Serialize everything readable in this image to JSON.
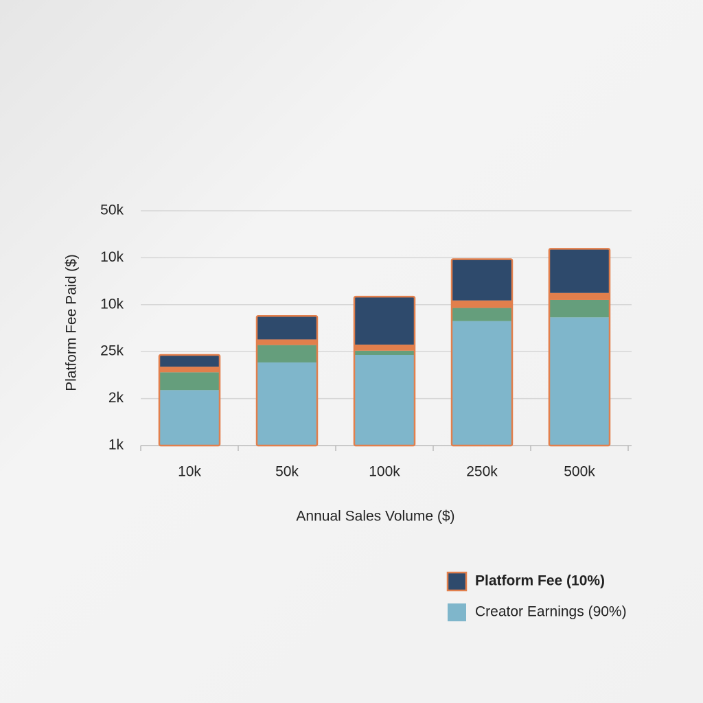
{
  "chart_data": {
    "type": "stacked_bar",
    "xlabel": "Annual Sales Volume ($)",
    "ylabel": "Platform Fee Paid ($)",
    "categories": [
      "10k",
      "50k",
      "100k",
      "250k",
      "500k"
    ],
    "series": [
      {
        "name": "Creator Earnings (90%)",
        "color": "#7fb6cb",
        "values": [
          1.18,
          1.77,
          1.93,
          2.65,
          2.73
        ]
      },
      {
        "color": "#659e7c",
        "values": [
          0.38,
          0.37,
          0.09,
          0.28,
          0.37
        ]
      },
      {
        "color": "#e27f4c",
        "values": [
          0.12,
          0.12,
          0.13,
          0.16,
          0.15
        ]
      },
      {
        "name": "Platform Fee (10%)",
        "color": "#2e4a6c",
        "values": [
          0.25,
          0.5,
          1.02,
          0.88,
          0.94
        ]
      }
    ],
    "outline": "#e27f4c",
    "ylim": [
      0,
      5
    ],
    "yticks": [
      {
        "value": 0,
        "label": "1k"
      },
      {
        "value": 1,
        "label": "2k"
      },
      {
        "value": 2,
        "label": "25k"
      },
      {
        "value": 3,
        "label": "10k"
      },
      {
        "value": 4,
        "label": "10k"
      },
      {
        "value": 5,
        "label": "50k"
      }
    ],
    "grid": true
  }
}
